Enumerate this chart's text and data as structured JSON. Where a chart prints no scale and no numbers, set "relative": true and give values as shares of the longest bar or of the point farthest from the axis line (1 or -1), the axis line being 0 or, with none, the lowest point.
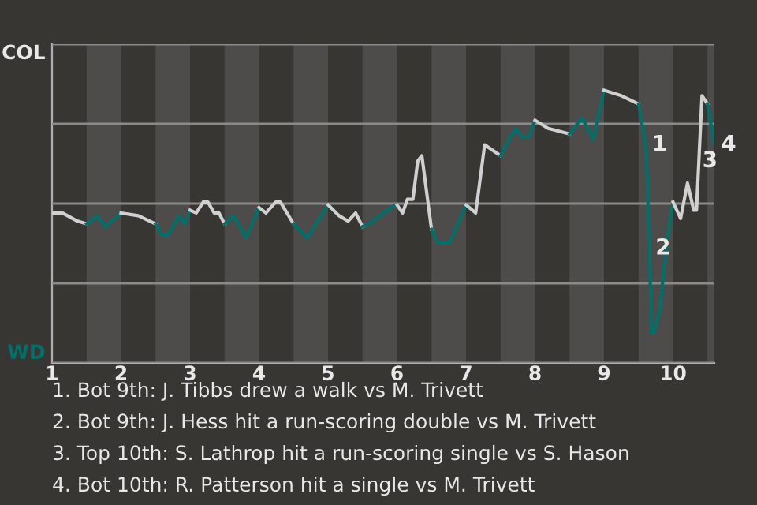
{
  "chart_data": {
    "type": "line",
    "relative": true,
    "xlim": [
      1,
      10.6
    ],
    "xticks": [
      1,
      2,
      3,
      4,
      5,
      6,
      7,
      8,
      9,
      10
    ],
    "grid": "y",
    "bands": [
      {
        "axis": "x",
        "from": 1.5,
        "to": 2,
        "color": "#4d4c4a"
      },
      {
        "axis": "x",
        "from": 2.5,
        "to": 3,
        "color": "#4d4c4a"
      },
      {
        "axis": "x",
        "from": 3.5,
        "to": 4,
        "color": "#4d4c4a"
      },
      {
        "axis": "x",
        "from": 4.5,
        "to": 5,
        "color": "#4d4c4a"
      },
      {
        "axis": "x",
        "from": 5.5,
        "to": 6,
        "color": "#4d4c4a"
      },
      {
        "axis": "x",
        "from": 6.5,
        "to": 7,
        "color": "#4d4c4a"
      },
      {
        "axis": "x",
        "from": 7.5,
        "to": 8,
        "color": "#4d4c4a"
      },
      {
        "axis": "x",
        "from": 8.5,
        "to": 9,
        "color": "#4d4c4a"
      },
      {
        "axis": "x",
        "from": 9.5,
        "to": 10,
        "color": "#4d4c4a"
      },
      {
        "axis": "x",
        "from": 10.5,
        "to": 10.6,
        "color": "#4d4c4a"
      }
    ],
    "series": [
      {
        "color": "#d0d0d0",
        "x": [
          1,
          1.15,
          1.37,
          1.5
        ],
        "values": [
          0.55,
          0.55,
          0.52,
          0.51
        ]
      },
      {
        "color": "#00706a",
        "x": [
          1.5,
          1.65,
          1.77,
          2
        ],
        "values": [
          0.51,
          0.54,
          0.5,
          0.55
        ]
      },
      {
        "color": "#d0d0d0",
        "x": [
          2,
          2.25,
          2.5
        ],
        "values": [
          0.55,
          0.54,
          0.51
        ]
      },
      {
        "color": "#00706a",
        "x": [
          2.5,
          2.59,
          2.68,
          2.84,
          2.92,
          3
        ],
        "values": [
          0.51,
          0.47,
          0.47,
          0.54,
          0.51,
          0.56
        ]
      },
      {
        "color": "#d0d0d0",
        "x": [
          3,
          3.09,
          3.19,
          3.26,
          3.35,
          3.42,
          3.5
        ],
        "values": [
          0.56,
          0.55,
          0.59,
          0.59,
          0.55,
          0.55,
          0.51
        ]
      },
      {
        "color": "#00706a",
        "x": [
          3.5,
          3.63,
          3.81,
          4
        ],
        "values": [
          0.51,
          0.54,
          0.46,
          0.57
        ]
      },
      {
        "color": "#d0d0d0",
        "x": [
          4,
          4.1,
          4.24,
          4.31,
          4.5
        ],
        "values": [
          0.57,
          0.55,
          0.59,
          0.59,
          0.51
        ]
      },
      {
        "color": "#00706a",
        "x": [
          4.5,
          4.7,
          5
        ],
        "values": [
          0.51,
          0.46,
          0.58
        ]
      },
      {
        "color": "#d0d0d0",
        "x": [
          5,
          5.16,
          5.29,
          5.4,
          5.5
        ],
        "values": [
          0.58,
          0.54,
          0.52,
          0.55,
          0.5
        ]
      },
      {
        "color": "#00706a",
        "x": [
          5.5,
          5.59,
          5.91,
          6
        ],
        "values": [
          0.5,
          0.51,
          0.57,
          0.58
        ]
      },
      {
        "color": "#d0d0d0",
        "x": [
          6,
          6.08,
          6.15,
          6.23,
          6.3,
          6.36,
          6.5
        ],
        "values": [
          0.58,
          0.55,
          0.6,
          0.6,
          0.74,
          0.76,
          0.49
        ]
      },
      {
        "color": "#00706a",
        "x": [
          6.5,
          6.59,
          6.76,
          7
        ],
        "values": [
          0.49,
          0.44,
          0.44,
          0.58
        ]
      },
      {
        "color": "#d0d0d0",
        "x": [
          7,
          7.14,
          7.27,
          7.5
        ],
        "values": [
          0.58,
          0.55,
          0.8,
          0.76
        ]
      },
      {
        "color": "#00706a",
        "x": [
          7.5,
          7.62,
          7.72,
          7.81,
          7.91,
          8
        ],
        "values": [
          0.76,
          0.82,
          0.86,
          0.83,
          0.83,
          0.89
        ]
      },
      {
        "color": "#d0d0d0",
        "x": [
          8,
          8.19,
          8.5
        ],
        "values": [
          0.89,
          0.86,
          0.84
        ]
      },
      {
        "color": "#00706a",
        "x": [
          8.5,
          8.68,
          8.84,
          9
        ],
        "values": [
          0.84,
          0.9,
          0.82,
          1.0
        ]
      },
      {
        "color": "#d0d0d0",
        "x": [
          9,
          9.25,
          9.5
        ],
        "values": [
          1.0,
          0.98,
          0.95
        ]
      },
      {
        "color": "#00706a",
        "x": [
          9.5,
          9.6,
          9.63,
          9.69,
          9.72,
          9.81,
          9.91,
          10
        ],
        "values": [
          0.95,
          0.8,
          0.65,
          0.11,
          0.11,
          0.2,
          0.45,
          0.59
        ]
      },
      {
        "color": "#d0d0d0",
        "x": [
          10,
          10.11,
          10.21,
          10.3,
          10.34,
          10.42,
          10.5
        ],
        "values": [
          0.59,
          0.53,
          0.66,
          0.56,
          0.56,
          0.98,
          0.95
        ]
      },
      {
        "color": "#00706a",
        "x": [
          10.5,
          10.6
        ],
        "values": [
          0.95,
          0.8
        ]
      }
    ],
    "annotations": [
      "COL",
      "WD",
      {
        "text": "1",
        "x": 9.6,
        "y": 0.8
      },
      {
        "text": "2",
        "x": 9.65,
        "y": 0.42
      },
      {
        "text": "3",
        "x": 10.33,
        "y": 0.74
      },
      {
        "text": "4",
        "x": 10.6,
        "y": 0.8
      },
      "1. Bot 9th: J. Tibbs drew a walk vs M. Trivett",
      "2. Bot 9th: J. Hess hit a run-scoring double vs M. Trivett",
      "3. Top 10th: S. Lathrop hit a run-scoring single vs S. Hason",
      "4. Bot 10th: R. Patterson hit a single vs M. Trivett"
    ]
  }
}
